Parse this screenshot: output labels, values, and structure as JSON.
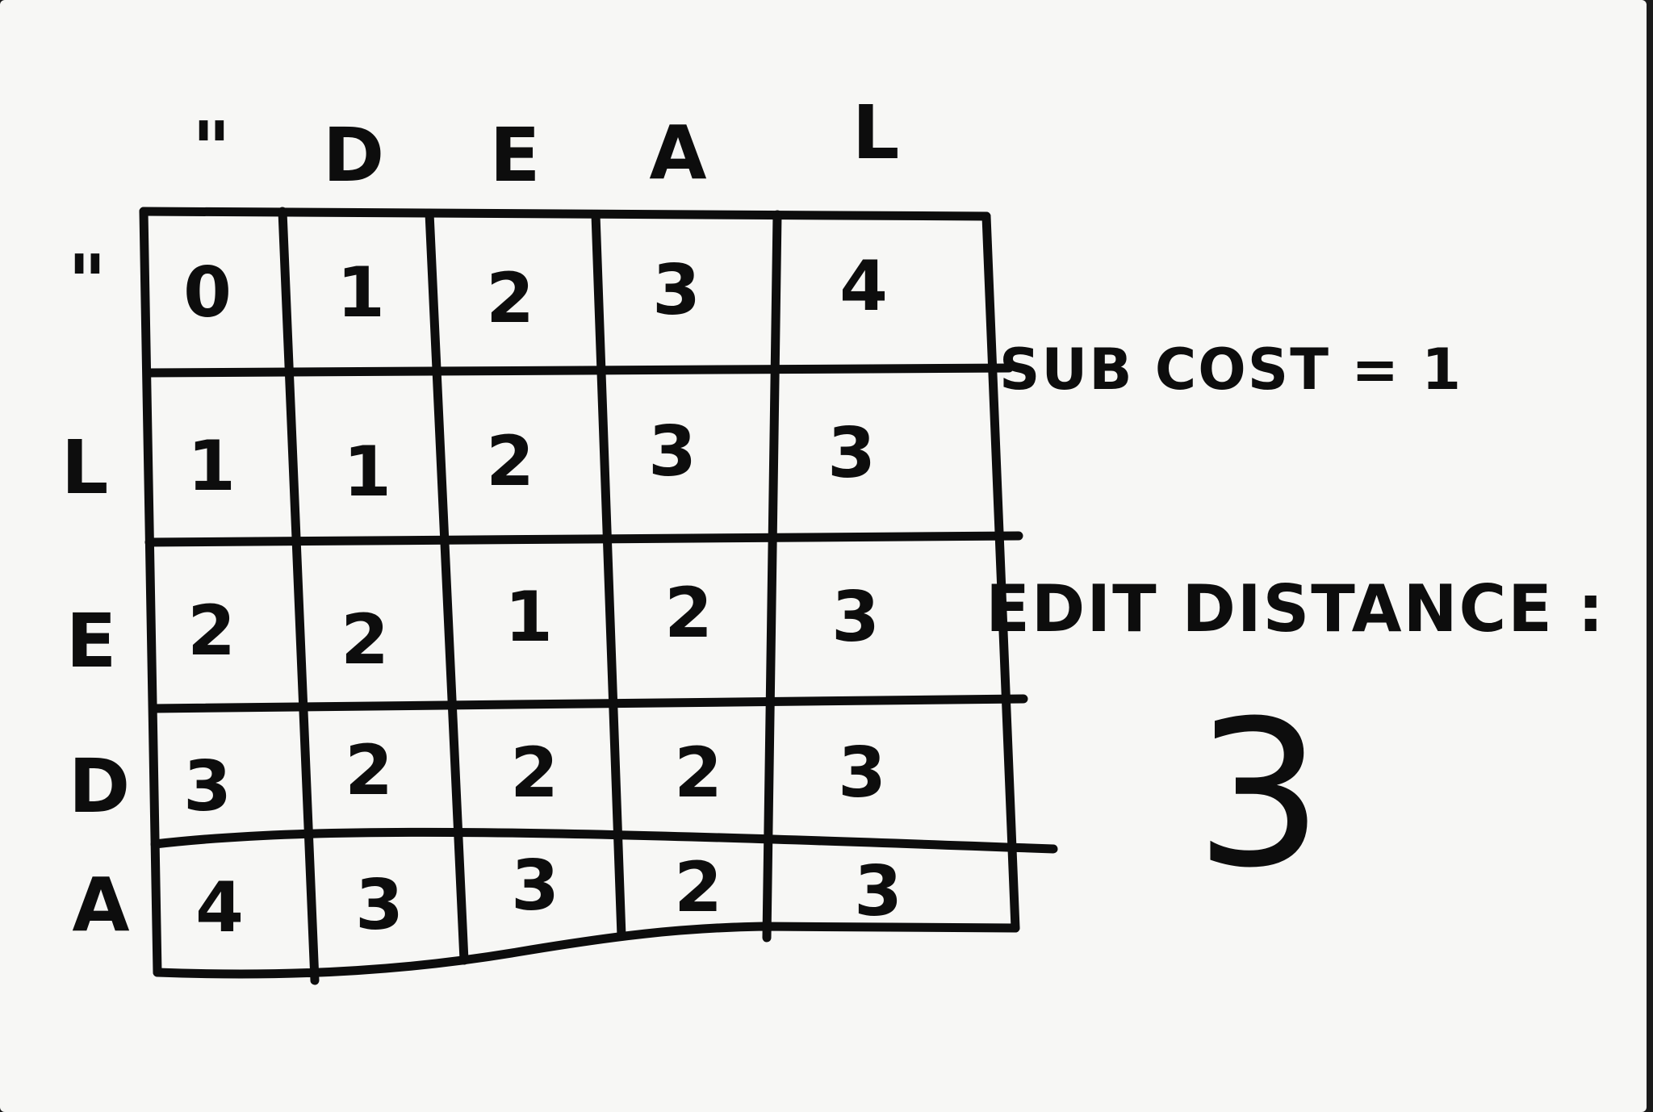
{
  "column_headers": [
    "\"",
    "D",
    "E",
    "A",
    "L"
  ],
  "row_headers": [
    "\"",
    "L",
    "E",
    "D",
    "A"
  ],
  "matrix": [
    [
      "0",
      "1",
      "2",
      "3",
      "4"
    ],
    [
      "1",
      "1",
      "2",
      "3",
      "3"
    ],
    [
      "2",
      "2",
      "1",
      "2",
      "3"
    ],
    [
      "3",
      "2",
      "2",
      "2",
      "3"
    ],
    [
      "4",
      "3",
      "3",
      "2",
      "3"
    ]
  ],
  "notes": {
    "sub_cost": "SUB COST = 1",
    "edit_distance_label": "EDIT DISTANCE :",
    "edit_distance_value": "3"
  }
}
